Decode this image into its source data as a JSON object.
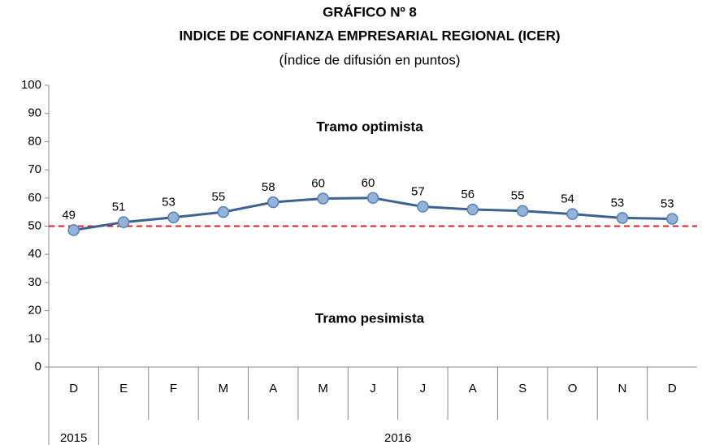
{
  "chart_data": {
    "type": "line",
    "title": "GRÁFICO Nº 8",
    "subtitle_bold": "INDICE DE CONFIANZA EMPRESARIAL REGIONAL (ICER)",
    "subtitle": "(Índice de difusión en puntos)",
    "categories": [
      "D",
      "E",
      "F",
      "M",
      "A",
      "M",
      "J",
      "J",
      "A",
      "S",
      "O",
      "N",
      "D"
    ],
    "groups": [
      {
        "label": "2015",
        "count": 1
      },
      {
        "label": "2016",
        "count": 12
      }
    ],
    "series": [
      {
        "name": "ICER",
        "color": "#3b6292",
        "marker_fill": "#95b3d7",
        "values": [
          48.6,
          51.4,
          53.1,
          55.0,
          58.5,
          59.8,
          60.0,
          56.9,
          55.9,
          55.4,
          54.3,
          52.9,
          52.6
        ],
        "value_labels": [
          "49",
          "51",
          "53",
          "55",
          "58",
          "60",
          "60",
          "57",
          "56",
          "55",
          "54",
          "53",
          "53"
        ]
      }
    ],
    "reference_line": {
      "value": 50,
      "color": "#e02020"
    },
    "annotations": [
      {
        "text": "Tramo optimista",
        "y": 85
      },
      {
        "text": "Tramo pesimista",
        "y": 17
      }
    ],
    "ylim": [
      0,
      100
    ],
    "yticks": [
      0,
      10,
      20,
      30,
      40,
      50,
      60,
      70,
      80,
      90,
      100
    ],
    "grid": false
  }
}
